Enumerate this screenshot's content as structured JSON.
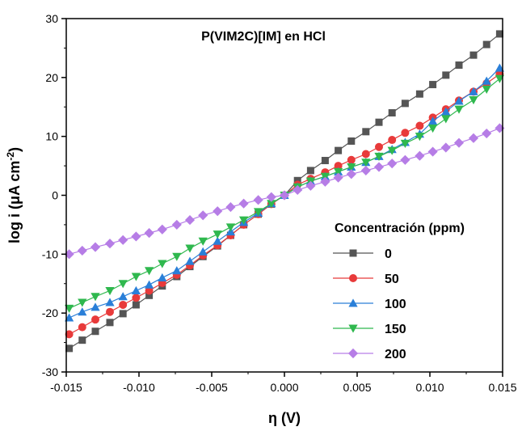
{
  "chart_data": {
    "type": "scatter",
    "title": "P(VIM2C)[IM] en HCl",
    "xlabel": "η (V)",
    "ylabel_main": "log i (μA cm",
    "ylabel_sup": "-2",
    "ylabel_end": ")",
    "xlim": [
      -0.015,
      0.015
    ],
    "ylim": [
      -30,
      30
    ],
    "xticks": [
      -0.015,
      -0.01,
      -0.005,
      0.0,
      0.005,
      0.01,
      0.015
    ],
    "xtick_labels": [
      "-0.015",
      "-0.010",
      "-0.005",
      "0.000",
      "0.005",
      "0.010",
      "0.015"
    ],
    "yticks": [
      -30,
      -20,
      -10,
      0,
      10,
      20,
      30
    ],
    "ytick_labels": [
      "-30",
      "-20",
      "-10",
      "0",
      "10",
      "20",
      "30"
    ],
    "grid": false,
    "legend_title": "Concentración (ppm)",
    "legend_position": "bottom-right",
    "series": [
      {
        "name": "0",
        "color": "#555555",
        "marker": "square",
        "x": [
          -0.0148,
          -0.0139,
          -0.013,
          -0.012,
          -0.0111,
          -0.0102,
          -0.0093,
          -0.0084,
          -0.0074,
          -0.0065,
          -0.0056,
          -0.0046,
          -0.0037,
          -0.0028,
          -0.0018,
          -0.0009,
          0.0,
          0.0009,
          0.0018,
          0.0028,
          0.0037,
          0.0046,
          0.0056,
          0.0065,
          0.0074,
          0.0083,
          0.0093,
          0.0102,
          0.0111,
          0.012,
          0.013,
          0.0139,
          0.0148
        ],
        "y": [
          -26.0,
          -24.6,
          -23.1,
          -21.6,
          -20.1,
          -18.6,
          -17.0,
          -15.4,
          -13.8,
          -12.1,
          -10.4,
          -8.6,
          -6.8,
          -5.0,
          -3.2,
          -1.5,
          0.0,
          2.5,
          4.2,
          5.9,
          7.6,
          9.2,
          10.8,
          12.4,
          14.0,
          15.6,
          17.2,
          18.8,
          20.4,
          22.1,
          23.8,
          25.6,
          27.4
        ]
      },
      {
        "name": "50",
        "color": "#e83a3a",
        "marker": "circle",
        "x": [
          -0.0148,
          -0.0139,
          -0.013,
          -0.012,
          -0.0111,
          -0.0102,
          -0.0093,
          -0.0084,
          -0.0074,
          -0.0065,
          -0.0056,
          -0.0046,
          -0.0037,
          -0.0028,
          -0.0018,
          -0.0009,
          0.0,
          0.0009,
          0.0018,
          0.0028,
          0.0037,
          0.0046,
          0.0056,
          0.0065,
          0.0074,
          0.0083,
          0.0093,
          0.0102,
          0.0111,
          0.012,
          0.013,
          0.0139,
          0.0148
        ],
        "y": [
          -23.6,
          -22.4,
          -21.1,
          -19.8,
          -18.6,
          -17.4,
          -16.2,
          -14.9,
          -13.5,
          -11.9,
          -10.2,
          -8.5,
          -6.8,
          -5.0,
          -3.2,
          -1.5,
          0.0,
          1.8,
          2.8,
          3.9,
          5.0,
          6.0,
          7.0,
          8.2,
          9.4,
          10.6,
          11.8,
          13.2,
          14.6,
          16.1,
          17.6,
          19.0,
          20.6
        ]
      },
      {
        "name": "100",
        "color": "#2a7fd8",
        "marker": "triangle-up",
        "x": [
          -0.0148,
          -0.0139,
          -0.013,
          -0.012,
          -0.0111,
          -0.0102,
          -0.0093,
          -0.0084,
          -0.0074,
          -0.0065,
          -0.0056,
          -0.0046,
          -0.0037,
          -0.0028,
          -0.0018,
          -0.0009,
          0.0,
          0.0009,
          0.0018,
          0.0028,
          0.0037,
          0.0046,
          0.0056,
          0.0065,
          0.0074,
          0.0083,
          0.0093,
          0.0102,
          0.0111,
          0.012,
          0.013,
          0.0139,
          0.0148
        ],
        "y": [
          -20.8,
          -19.8,
          -19.0,
          -18.2,
          -17.2,
          -16.2,
          -15.2,
          -14.0,
          -12.8,
          -11.2,
          -9.6,
          -7.8,
          -6.2,
          -4.6,
          -3.0,
          -1.4,
          0.0,
          1.4,
          2.4,
          3.2,
          4.0,
          4.8,
          5.6,
          6.6,
          7.8,
          9.0,
          10.4,
          12.6,
          14.2,
          16.0,
          17.6,
          19.4,
          21.6
        ]
      },
      {
        "name": "150",
        "color": "#2fb84e",
        "marker": "triangle-down",
        "x": [
          -0.0148,
          -0.0139,
          -0.013,
          -0.012,
          -0.0111,
          -0.0102,
          -0.0093,
          -0.0084,
          -0.0074,
          -0.0065,
          -0.0056,
          -0.0046,
          -0.0037,
          -0.0028,
          -0.0018,
          -0.0009,
          0.0,
          0.0009,
          0.0018,
          0.0028,
          0.0037,
          0.0046,
          0.0056,
          0.0065,
          0.0074,
          0.0083,
          0.0093,
          0.0102,
          0.0111,
          0.012,
          0.013,
          0.0139,
          0.0148
        ],
        "y": [
          -19.2,
          -18.2,
          -17.2,
          -16.2,
          -15.0,
          -13.8,
          -12.8,
          -11.6,
          -10.4,
          -9.0,
          -7.8,
          -6.6,
          -5.4,
          -4.2,
          -2.8,
          -1.4,
          0.0,
          1.4,
          2.4,
          3.2,
          4.0,
          4.8,
          5.6,
          6.6,
          7.6,
          8.8,
          10.0,
          11.4,
          13.0,
          14.6,
          16.2,
          18.0,
          19.8
        ]
      },
      {
        "name": "200",
        "color": "#b67de6",
        "marker": "diamond",
        "x": [
          -0.0148,
          -0.0139,
          -0.013,
          -0.012,
          -0.0111,
          -0.0102,
          -0.0093,
          -0.0084,
          -0.0074,
          -0.0065,
          -0.0056,
          -0.0046,
          -0.0037,
          -0.0028,
          -0.0018,
          -0.0009,
          0.0,
          0.0009,
          0.0018,
          0.0028,
          0.0037,
          0.0046,
          0.0056,
          0.0065,
          0.0074,
          0.0083,
          0.0093,
          0.0102,
          0.0111,
          0.012,
          0.013,
          0.0139,
          0.0148
        ],
        "y": [
          -10.0,
          -9.4,
          -8.8,
          -8.2,
          -7.6,
          -7.0,
          -6.4,
          -5.8,
          -5.0,
          -4.2,
          -3.4,
          -2.7,
          -2.0,
          -1.4,
          -0.8,
          -0.3,
          0.0,
          0.9,
          1.6,
          2.3,
          3.0,
          3.6,
          4.2,
          4.8,
          5.4,
          6.0,
          6.7,
          7.4,
          8.1,
          8.9,
          9.7,
          10.5,
          11.4
        ]
      }
    ]
  }
}
